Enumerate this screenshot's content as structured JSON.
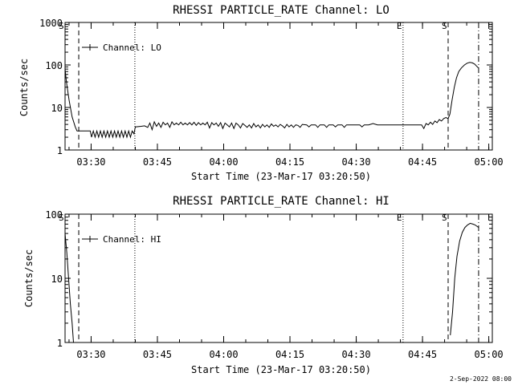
{
  "chart_data": [
    {
      "type": "line",
      "title": "RHESSI PARTICLE_RATE Channel: LO",
      "xlabel": "Start Time (23-Mar-17 03:20:50)",
      "ylabel": "Counts/sec",
      "yscale": "log",
      "ylim": [
        1,
        1000
      ],
      "xlim_minutes": [
        3.3,
        100.0
      ],
      "y_ticks": [
        "1",
        "10",
        "100",
        "1000"
      ],
      "x_tick_minutes": [
        9.2,
        24.2,
        39.2,
        54.2,
        69.2,
        84.2,
        99.2
      ],
      "x_ticks": [
        "03:30",
        "03:45",
        "04:00",
        "04:15",
        "04:30",
        "04:45",
        "05:00"
      ],
      "legend": {
        "label": "Channel: LO",
        "position": "top-left"
      },
      "markers": [
        {
          "minute": 3.3,
          "label": "S",
          "style": "dotted"
        },
        {
          "minute": 6.4,
          "label": "",
          "style": "dashed"
        },
        {
          "minute": 19.1,
          "label": "",
          "style": "dotted"
        },
        {
          "minute": 79.8,
          "label": "E",
          "style": "dotted"
        },
        {
          "minute": 90.0,
          "label": "S",
          "style": "dashed"
        },
        {
          "minute": 96.9,
          "label": "",
          "style": "dashdot"
        }
      ],
      "series": [
        {
          "name": "Channel: LO",
          "points": [
            [
              3.3,
              80
            ],
            [
              3.6,
              40
            ],
            [
              4.2,
              15
            ],
            [
              4.9,
              6
            ],
            [
              5.6,
              3.5
            ],
            [
              6.0,
              2.8
            ],
            [
              8.0,
              2.8
            ],
            [
              9.0,
              2.8
            ],
            [
              9.3,
              2.0
            ],
            [
              9.7,
              2.8
            ],
            [
              10.1,
              2.0
            ],
            [
              10.5,
              2.8
            ],
            [
              10.9,
              2.0
            ],
            [
              11.3,
              2.8
            ],
            [
              11.7,
              2.0
            ],
            [
              12.1,
              2.8
            ],
            [
              12.5,
              2.0
            ],
            [
              12.9,
              2.8
            ],
            [
              13.3,
              2.0
            ],
            [
              13.7,
              2.8
            ],
            [
              14.1,
              2.0
            ],
            [
              14.5,
              2.8
            ],
            [
              14.9,
              2.0
            ],
            [
              15.3,
              2.8
            ],
            [
              15.7,
              2.0
            ],
            [
              16.1,
              2.8
            ],
            [
              16.5,
              2.0
            ],
            [
              16.9,
              2.8
            ],
            [
              17.3,
              2.0
            ],
            [
              17.7,
              2.8
            ],
            [
              18.1,
              2.0
            ],
            [
              18.5,
              2.8
            ],
            [
              18.9,
              2.4
            ],
            [
              19.2,
              3.5
            ],
            [
              20.5,
              3.6
            ],
            [
              21.3,
              3.7
            ],
            [
              22.0,
              3.4
            ],
            [
              22.5,
              4.3
            ],
            [
              23.0,
              3.0
            ],
            [
              23.5,
              4.6
            ],
            [
              24.0,
              3.6
            ],
            [
              24.5,
              4.3
            ],
            [
              25.0,
              3.4
            ],
            [
              25.5,
              4.5
            ],
            [
              26.0,
              3.9
            ],
            [
              26.5,
              4.3
            ],
            [
              27.0,
              3.4
            ],
            [
              27.5,
              4.6
            ],
            [
              28.0,
              3.9
            ],
            [
              28.5,
              4.3
            ],
            [
              29.0,
              3.9
            ],
            [
              29.5,
              4.5
            ],
            [
              30.0,
              3.9
            ],
            [
              30.5,
              4.3
            ],
            [
              31.0,
              3.9
            ],
            [
              31.5,
              4.4
            ],
            [
              32.0,
              3.9
            ],
            [
              32.5,
              4.5
            ],
            [
              33.0,
              3.8
            ],
            [
              33.5,
              4.4
            ],
            [
              34.0,
              3.9
            ],
            [
              34.5,
              4.3
            ],
            [
              35.0,
              3.9
            ],
            [
              35.5,
              4.5
            ],
            [
              36.0,
              3.3
            ],
            [
              36.5,
              4.4
            ],
            [
              37.0,
              3.9
            ],
            [
              37.5,
              4.3
            ],
            [
              38.0,
              3.6
            ],
            [
              38.5,
              4.4
            ],
            [
              39.0,
              3.2
            ],
            [
              39.5,
              4.3
            ],
            [
              40.0,
              3.9
            ],
            [
              40.5,
              3.5
            ],
            [
              41.0,
              4.3
            ],
            [
              41.5,
              3.2
            ],
            [
              42.0,
              4.3
            ],
            [
              42.5,
              3.9
            ],
            [
              43.0,
              3.3
            ],
            [
              43.5,
              4.2
            ],
            [
              44.0,
              3.8
            ],
            [
              44.5,
              3.4
            ],
            [
              45.0,
              3.9
            ],
            [
              45.5,
              3.3
            ],
            [
              46.0,
              4.2
            ],
            [
              46.5,
              3.5
            ],
            [
              47.0,
              3.9
            ],
            [
              47.5,
              3.3
            ],
            [
              48.0,
              4.0
            ],
            [
              48.5,
              3.5
            ],
            [
              49.0,
              3.9
            ],
            [
              49.5,
              3.4
            ],
            [
              50.0,
              4.1
            ],
            [
              50.5,
              3.6
            ],
            [
              51.0,
              3.9
            ],
            [
              51.5,
              3.5
            ],
            [
              52.0,
              4.0
            ],
            [
              52.5,
              3.7
            ],
            [
              53.0,
              3.3
            ],
            [
              53.5,
              4.0
            ],
            [
              54.0,
              3.5
            ],
            [
              54.5,
              3.9
            ],
            [
              55.0,
              3.4
            ],
            [
              55.5,
              3.9
            ],
            [
              56.0,
              3.8
            ],
            [
              56.5,
              3.4
            ],
            [
              57.0,
              4.0
            ],
            [
              58.0,
              3.9
            ],
            [
              58.5,
              3.5
            ],
            [
              59.0,
              3.9
            ],
            [
              60.0,
              3.9
            ],
            [
              60.5,
              3.4
            ],
            [
              61.0,
              3.9
            ],
            [
              62.0,
              3.9
            ],
            [
              62.5,
              3.4
            ],
            [
              63.0,
              3.9
            ],
            [
              64.0,
              3.9
            ],
            [
              64.5,
              3.5
            ],
            [
              65.0,
              3.9
            ],
            [
              66.0,
              3.9
            ],
            [
              66.5,
              3.4
            ],
            [
              67.0,
              3.9
            ],
            [
              68.0,
              3.9
            ],
            [
              69.0,
              3.9
            ],
            [
              70.0,
              3.9
            ],
            [
              70.5,
              3.5
            ],
            [
              71.0,
              3.9
            ],
            [
              72.0,
              3.9
            ],
            [
              73.0,
              4.2
            ],
            [
              74.0,
              3.9
            ],
            [
              75.0,
              3.9
            ],
            [
              76.0,
              3.9
            ],
            [
              77.0,
              3.9
            ],
            [
              78.0,
              3.9
            ],
            [
              79.0,
              3.9
            ],
            [
              80.0,
              3.9
            ],
            [
              81.0,
              3.9
            ],
            [
              82.0,
              3.9
            ],
            [
              83.0,
              3.9
            ],
            [
              84.0,
              3.9
            ],
            [
              84.5,
              3.2
            ],
            [
              85.0,
              4.2
            ],
            [
              85.5,
              3.9
            ],
            [
              86.0,
              4.5
            ],
            [
              86.5,
              4.0
            ],
            [
              87.0,
              4.8
            ],
            [
              87.5,
              4.4
            ],
            [
              88.0,
              5.2
            ],
            [
              88.5,
              4.8
            ],
            [
              89.0,
              5.5
            ],
            [
              89.5,
              5.8
            ],
            [
              90.0,
              5.5
            ],
            [
              90.4,
              7.0
            ],
            [
              90.9,
              15
            ],
            [
              91.4,
              30
            ],
            [
              91.9,
              50
            ],
            [
              92.4,
              70
            ],
            [
              93.0,
              85
            ],
            [
              93.7,
              100
            ],
            [
              94.3,
              110
            ],
            [
              94.9,
              115
            ],
            [
              95.5,
              112
            ],
            [
              96.0,
              105
            ],
            [
              96.4,
              95
            ],
            [
              96.7,
              88
            ],
            [
              96.9,
              85
            ]
          ]
        }
      ]
    },
    {
      "type": "line",
      "title": "RHESSI PARTICLE_RATE Channel: HI",
      "xlabel": "Start Time (23-Mar-17 03:20:50)",
      "ylabel": "Counts/sec",
      "yscale": "log",
      "ylim": [
        1,
        100
      ],
      "xlim_minutes": [
        3.3,
        100.0
      ],
      "y_ticks": [
        "1",
        "10",
        "100"
      ],
      "x_tick_minutes": [
        9.2,
        24.2,
        39.2,
        54.2,
        69.2,
        84.2,
        99.2
      ],
      "x_ticks": [
        "03:30",
        "03:45",
        "04:00",
        "04:15",
        "04:30",
        "04:45",
        "05:00"
      ],
      "legend": {
        "label": "Channel: HI",
        "position": "top-left"
      },
      "markers": [
        {
          "minute": 3.3,
          "label": "S",
          "style": "dotted"
        },
        {
          "minute": 6.4,
          "label": "",
          "style": "dashed"
        },
        {
          "minute": 19.1,
          "label": "",
          "style": "dotted"
        },
        {
          "minute": 79.8,
          "label": "E",
          "style": "dotted"
        },
        {
          "minute": 90.0,
          "label": "S",
          "style": "dashed"
        },
        {
          "minute": 96.9,
          "label": "",
          "style": "dashdot"
        }
      ],
      "series": [
        {
          "name": "Channel: HI",
          "segments": [
            [
              [
                3.3,
                50
              ],
              [
                3.7,
                25
              ],
              [
                4.1,
                10
              ],
              [
                4.5,
                4
              ],
              [
                4.9,
                2
              ],
              [
                5.2,
                1.0
              ]
            ],
            [
              [
                90.5,
                1.3
              ],
              [
                91.0,
                3
              ],
              [
                91.5,
                10
              ],
              [
                92.0,
                22
              ],
              [
                92.6,
                38
              ],
              [
                93.2,
                52
              ],
              [
                93.8,
                62
              ],
              [
                94.4,
                68
              ],
              [
                95.0,
                72
              ],
              [
                95.6,
                70
              ],
              [
                96.1,
                68
              ],
              [
                96.5,
                65
              ],
              [
                96.9,
                62
              ]
            ]
          ]
        }
      ]
    }
  ],
  "footer": {
    "timestamp": "2-Sep-2022 08:00"
  }
}
